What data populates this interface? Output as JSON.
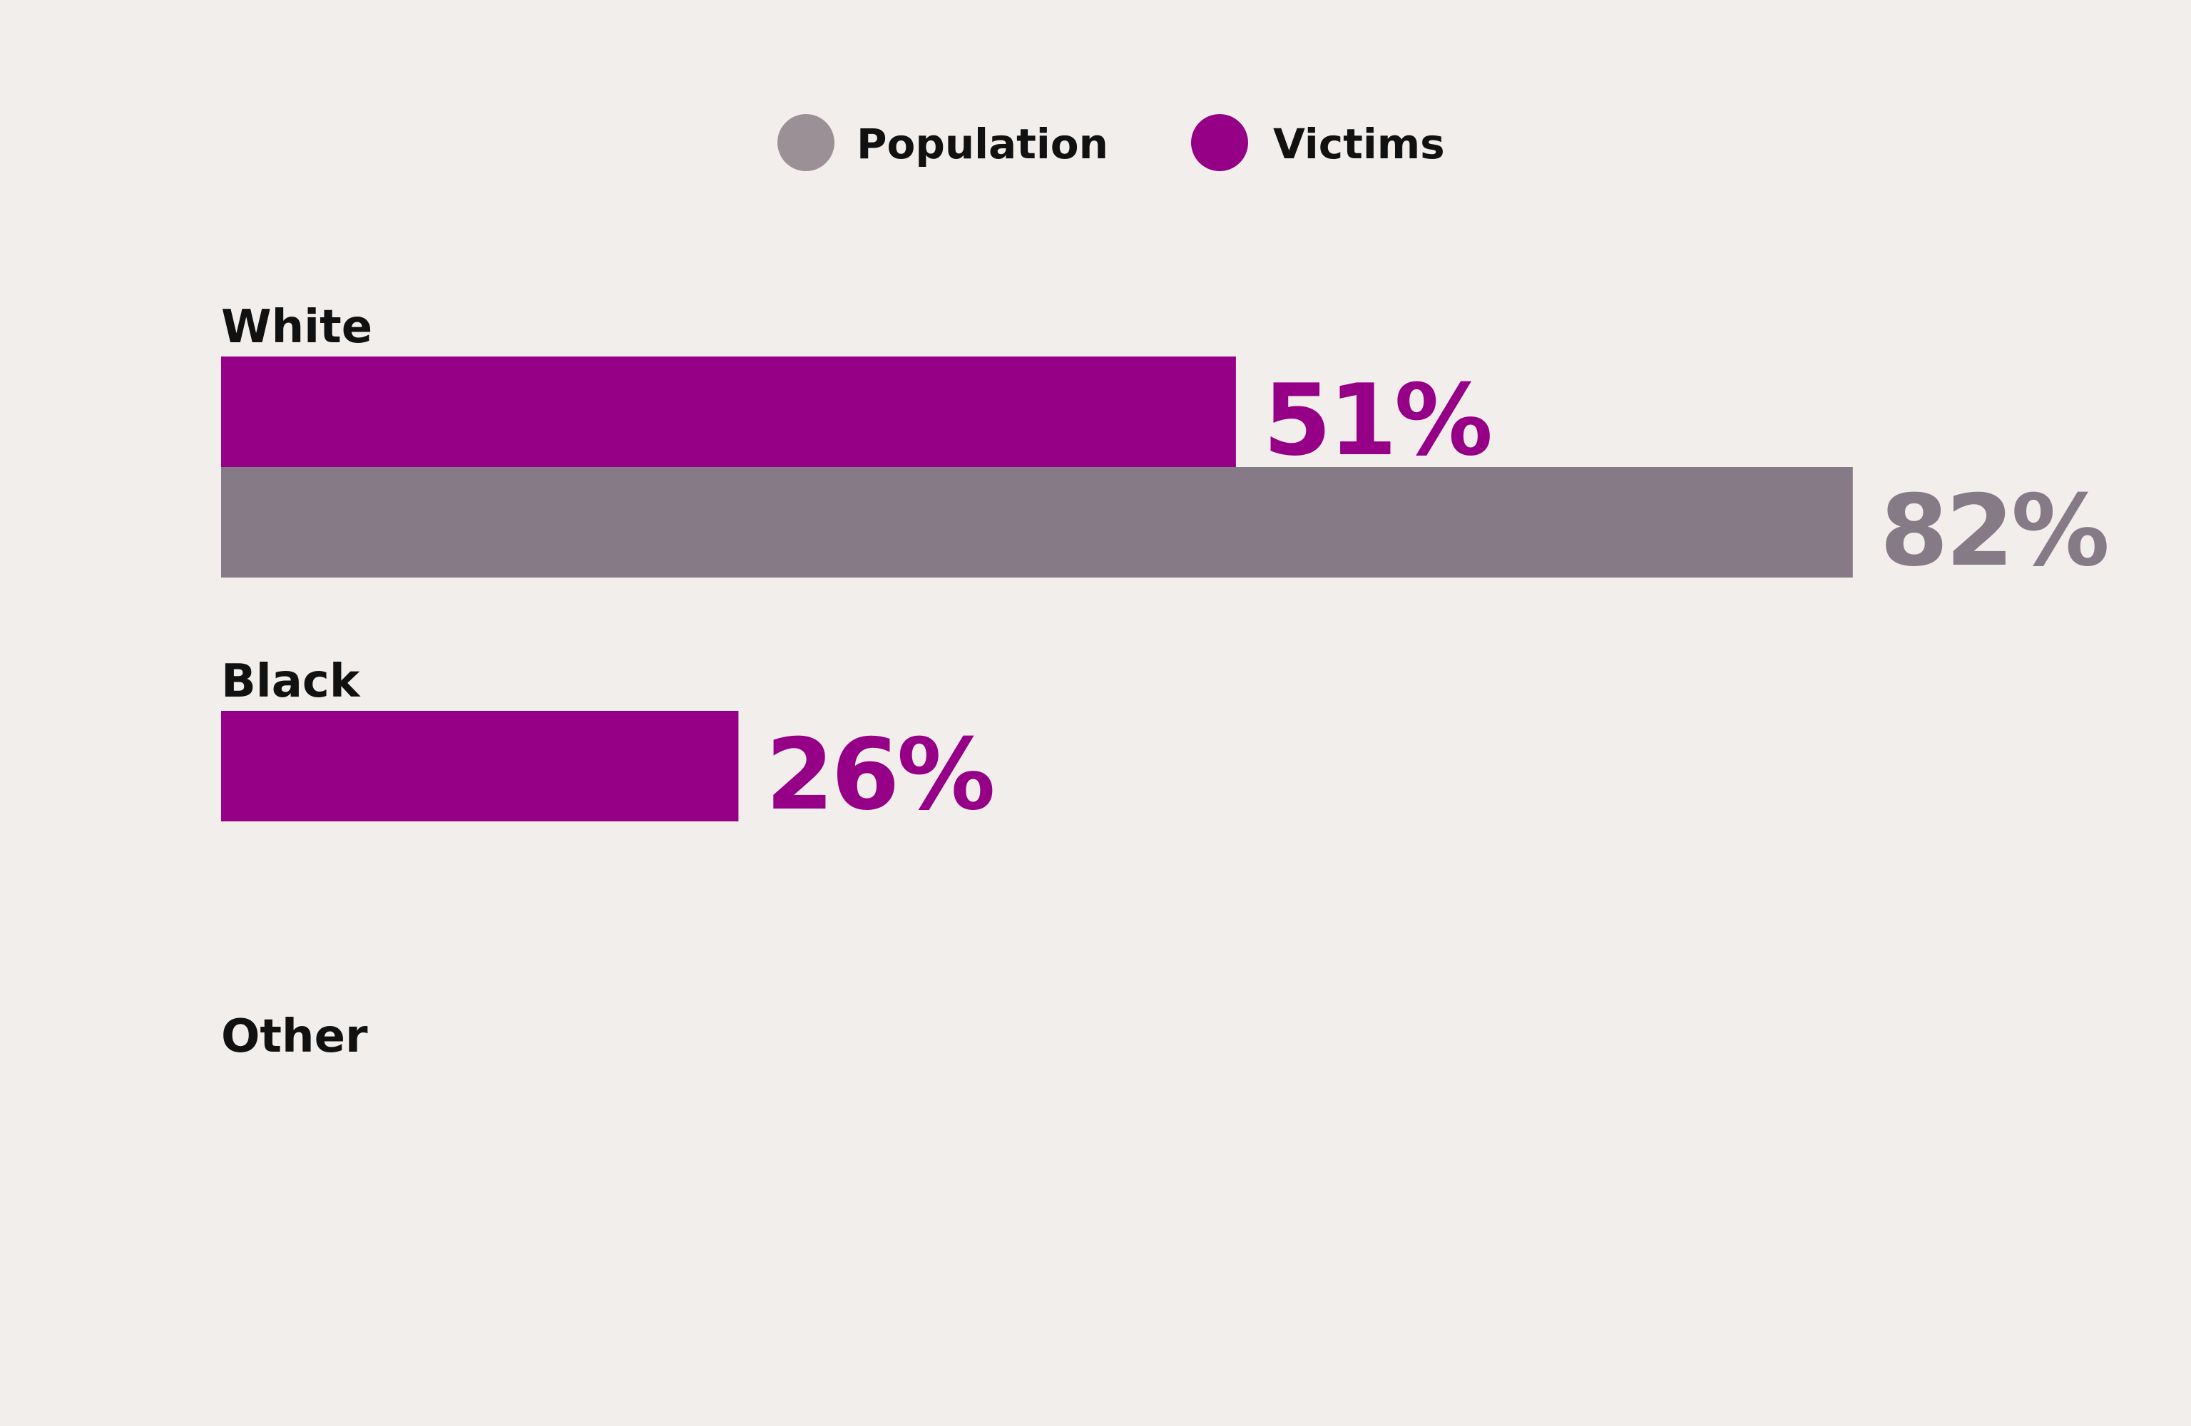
{
  "chart_data": {
    "type": "bar",
    "orientation": "horizontal",
    "categories": [
      "White",
      "Black",
      "Other"
    ],
    "series": [
      {
        "name": "Victims",
        "color": "#960087",
        "values": [
          51,
          26,
          null
        ],
        "labels": [
          "51%",
          "26%",
          ""
        ]
      },
      {
        "name": "Population",
        "color": "#857a86",
        "values": [
          82,
          null,
          null
        ],
        "labels": [
          "82%",
          "",
          ""
        ]
      }
    ],
    "legend_order": [
      "Population",
      "Victims"
    ],
    "legend_colors": [
      "#9a9096",
      "#960087"
    ],
    "legend": "top-center",
    "xlim": [
      0,
      100
    ],
    "unit": "%",
    "grid": false
  }
}
